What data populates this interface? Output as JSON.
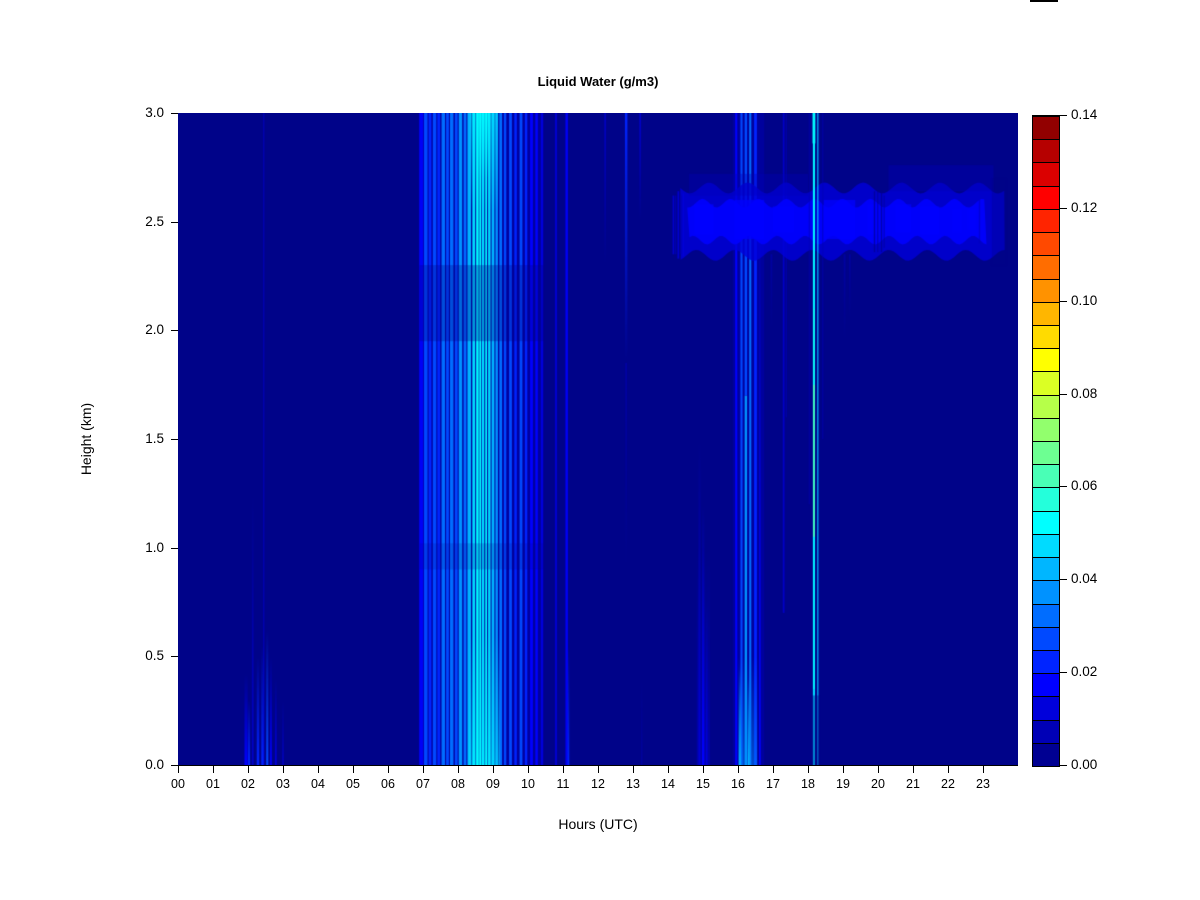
{
  "chart": {
    "title": "Liquid Water (g/m3)",
    "xlabel": "Hours (UTC)",
    "ylabel": "Height (km)"
  },
  "chart_data": {
    "type": "heatmap",
    "title": "Liquid Water (g/m3)",
    "xlabel": "Hours (UTC)",
    "ylabel": "Height (km)",
    "x_range": [
      0,
      24
    ],
    "y_range": [
      0,
      3
    ],
    "value_range": [
      0,
      0.14
    ],
    "bin_size": 0.005,
    "grid": false,
    "plot_bg": "#000389",
    "x_ticks": [
      "00",
      "01",
      "02",
      "03",
      "04",
      "05",
      "06",
      "07",
      "08",
      "09",
      "10",
      "11",
      "12",
      "13",
      "14",
      "15",
      "16",
      "17",
      "18",
      "19",
      "20",
      "21",
      "22",
      "23"
    ],
    "y_ticks": [
      "0.0",
      "0.5",
      "1.0",
      "1.5",
      "2.0",
      "2.5",
      "3.0"
    ],
    "colorbar": {
      "position": "right",
      "tick_labels": [
        "0.00",
        "0.02",
        "0.04",
        "0.06",
        "0.08",
        "0.10",
        "0.12",
        "0.14"
      ],
      "tick_values": [
        0.0,
        0.02,
        0.04,
        0.06,
        0.08,
        0.1,
        0.12,
        0.14
      ],
      "segment_colors": [
        "#000092",
        "#0000B6",
        "#0000DB",
        "#0000FF",
        "#0024FF",
        "#0049FF",
        "#006DFF",
        "#0092FF",
        "#00B6FF",
        "#00DBFF",
        "#00FFFF",
        "#24FFDB",
        "#49FFB6",
        "#6DFF92",
        "#92FF6D",
        "#B6FF49",
        "#DBFF24",
        "#FFFF00",
        "#FFDB00",
        "#FFB600",
        "#FF9200",
        "#FF6D00",
        "#FF4900",
        "#FF2400",
        "#FF0000",
        "#DB0000",
        "#B60000",
        "#920000"
      ]
    },
    "features": [
      {
        "x0": 6.9,
        "x1": 10.45,
        "y0": 0,
        "y1": 3,
        "v": 0.008,
        "a": 0.5
      },
      {
        "x0": 15.85,
        "x1": 16.75,
        "y0": 0,
        "y1": 3,
        "v": 0.008,
        "a": 0.45
      },
      {
        "x0": 14.82,
        "x1": 15.2,
        "y0": 0,
        "y1": 1.0,
        "v": 0.01,
        "a": 0.4,
        "f": "t"
      },
      {
        "x0": 1.9,
        "x1": 1.99,
        "y0": 0,
        "y1": 0.42,
        "v": 0.015,
        "f": "t"
      },
      {
        "x0": 2.0,
        "x1": 2.06,
        "y0": 0,
        "y1": 0.3,
        "v": 0.02,
        "f": "t"
      },
      {
        "x0": 2.11,
        "x1": 2.16,
        "y0": 0,
        "y1": 1.25,
        "v": 0.012,
        "a": 0.8,
        "f": "t"
      },
      {
        "x0": 2.25,
        "x1": 2.32,
        "y0": 0,
        "y1": 0.5,
        "v": 0.02,
        "f": "t"
      },
      {
        "x0": 2.38,
        "x1": 2.46,
        "y0": 0,
        "y1": 0.55,
        "v": 0.022,
        "f": "t"
      },
      {
        "x0": 2.43,
        "x1": 2.47,
        "y0": 0,
        "y1": 3,
        "v": 0.01,
        "a": 0.5
      },
      {
        "x0": 2.52,
        "x1": 2.58,
        "y0": 0,
        "y1": 0.62,
        "v": 0.025,
        "f": "t"
      },
      {
        "x0": 2.63,
        "x1": 2.68,
        "y0": 0,
        "y1": 0.5,
        "v": 0.018,
        "f": "t"
      },
      {
        "x0": 2.77,
        "x1": 2.82,
        "y0": 0,
        "y1": 0.4,
        "v": 0.012,
        "f": "t"
      },
      {
        "x0": 2.98,
        "x1": 3.02,
        "y0": 0,
        "y1": 0.3,
        "v": 0.01,
        "a": 0.8,
        "f": "t"
      },
      {
        "x0": 6.89,
        "x1": 7.01,
        "y0": 0,
        "y1": 3,
        "v": 0.018,
        "a": 0.9
      },
      {
        "x0": 7.03,
        "x1": 7.13,
        "y0": 0,
        "y1": 3,
        "v": 0.025
      },
      {
        "x0": 7.16,
        "x1": 7.24,
        "y0": 0,
        "y1": 3,
        "v": 0.02
      },
      {
        "x0": 7.28,
        "x1": 7.38,
        "y0": 0,
        "y1": 3,
        "v": 0.028
      },
      {
        "x0": 7.41,
        "x1": 7.49,
        "y0": 0,
        "y1": 3,
        "v": 0.022
      },
      {
        "x0": 7.53,
        "x1": 7.63,
        "y0": 0,
        "y1": 3,
        "v": 0.03
      },
      {
        "x0": 7.66,
        "x1": 7.74,
        "y0": 0,
        "y1": 3,
        "v": 0.025
      },
      {
        "x0": 7.77,
        "x1": 7.87,
        "y0": 0,
        "y1": 3,
        "v": 0.032
      },
      {
        "x0": 7.91,
        "x1": 7.99,
        "y0": 0,
        "y1": 3,
        "v": 0.028
      },
      {
        "x0": 8.02,
        "x1": 8.12,
        "y0": 0,
        "y1": 3,
        "v": 0.035
      },
      {
        "x0": 8.16,
        "x1": 8.24,
        "y0": 0,
        "y1": 3,
        "v": 0.03
      },
      {
        "x0": 8.27,
        "x1": 8.37,
        "y0": 0,
        "y1": 3,
        "v": 0.04
      },
      {
        "x0": 8.41,
        "x1": 8.49,
        "y0": 0,
        "y1": 3,
        "v": 0.045
      },
      {
        "x0": 8.52,
        "x1": 8.59,
        "y0": 0,
        "y1": 3,
        "v": 0.05
      },
      {
        "x0": 8.61,
        "x1": 8.66,
        "y0": 0,
        "y1": 3,
        "v": 0.05
      },
      {
        "x0": 8.68,
        "x1": 8.75,
        "y0": 0,
        "y1": 3,
        "v": 0.048
      },
      {
        "x0": 8.78,
        "x1": 8.83,
        "y0": 0,
        "y1": 3,
        "v": 0.05
      },
      {
        "x0": 8.86,
        "x1": 8.93,
        "y0": 0,
        "y1": 3,
        "v": 0.048
      },
      {
        "x0": 8.96,
        "x1": 9.04,
        "y0": 0,
        "y1": 3,
        "v": 0.042
      },
      {
        "x0": 9.07,
        "x1": 9.14,
        "y0": 0,
        "y1": 3,
        "v": 0.038
      },
      {
        "x0": 9.18,
        "x1": 9.26,
        "y0": 0,
        "y1": 3,
        "v": 0.032
      },
      {
        "x0": 9.31,
        "x1": 9.38,
        "y0": 0,
        "y1": 3,
        "v": 0.028
      },
      {
        "x0": 9.46,
        "x1": 9.54,
        "y0": 0,
        "y1": 3,
        "v": 0.025
      },
      {
        "x0": 9.61,
        "x1": 9.68,
        "y0": 0,
        "y1": 3,
        "v": 0.022
      },
      {
        "x0": 9.76,
        "x1": 9.84,
        "y0": 0,
        "y1": 3,
        "v": 0.025
      },
      {
        "x0": 9.91,
        "x1": 9.98,
        "y0": 0,
        "y1": 3,
        "v": 0.02
      },
      {
        "x0": 10.06,
        "x1": 10.14,
        "y0": 0,
        "y1": 3,
        "v": 0.018
      },
      {
        "x0": 10.21,
        "x1": 10.28,
        "y0": 0,
        "y1": 3,
        "v": 0.015
      },
      {
        "x0": 10.37,
        "x1": 10.43,
        "y0": 0,
        "y1": 3,
        "v": 0.012
      },
      {
        "x0": 8.35,
        "x1": 9.15,
        "y0": 2.55,
        "y1": 3,
        "v": 0.05,
        "a": 0.5,
        "f": "b"
      },
      {
        "x0": 8.55,
        "x1": 8.9,
        "y0": 2.7,
        "y1": 3,
        "v": 0.05,
        "a": 0.6,
        "f": "b"
      },
      {
        "x0": 8.3,
        "x1": 9.2,
        "y0": 0,
        "y1": 0.6,
        "v": 0.05,
        "a": 0.45,
        "f": "t"
      },
      {
        "x0": 6.9,
        "x1": 10.45,
        "y0": 1.95,
        "y1": 2.3,
        "v": 0.003,
        "a": 0.3
      },
      {
        "x0": 6.9,
        "x1": 10.45,
        "y0": 0.9,
        "y1": 1.02,
        "v": 0.003,
        "a": 0.18
      },
      {
        "x0": 10.77,
        "x1": 10.83,
        "y0": 0,
        "y1": 3,
        "v": 0.013,
        "a": 0.85
      },
      {
        "x0": 11.07,
        "x1": 11.14,
        "y0": 0,
        "y1": 3,
        "v": 0.016,
        "a": 0.9
      },
      {
        "x0": 11.13,
        "x1": 11.18,
        "y0": 0,
        "y1": 0.55,
        "v": 0.022,
        "f": "t"
      },
      {
        "x0": 12.18,
        "x1": 12.23,
        "y0": 2.3,
        "y1": 3,
        "v": 0.01,
        "a": 0.7,
        "f": "b"
      },
      {
        "x0": 12.77,
        "x1": 12.84,
        "y0": 1.85,
        "y1": 3,
        "v": 0.02,
        "f": "b"
      },
      {
        "x0": 12.78,
        "x1": 12.83,
        "y0": 0.9,
        "y1": 1.85,
        "v": 0.008,
        "a": 0.6,
        "f": "b"
      },
      {
        "x0": 13.18,
        "x1": 13.23,
        "y0": 2.5,
        "y1": 3,
        "v": 0.012,
        "a": 0.8,
        "f": "b"
      },
      {
        "x0": 13.23,
        "x1": 13.27,
        "y0": 0,
        "y1": 0.4,
        "v": 0.008,
        "a": 0.5,
        "f": "t"
      },
      {
        "x0": 14.87,
        "x1": 14.93,
        "y0": 0,
        "y1": 1.5,
        "v": 0.013,
        "a": 0.9,
        "f": "t"
      },
      {
        "x0": 14.97,
        "x1": 15.04,
        "y0": 0,
        "y1": 1.2,
        "v": 0.016,
        "f": "t"
      },
      {
        "x0": 15.08,
        "x1": 15.13,
        "y0": 0,
        "y1": 0.75,
        "v": 0.012,
        "f": "t"
      },
      {
        "x0": 15.92,
        "x1": 15.98,
        "y0": 0,
        "y1": 3,
        "v": 0.018
      },
      {
        "x0": 16.07,
        "x1": 16.13,
        "y0": 0,
        "y1": 3,
        "v": 0.028
      },
      {
        "x0": 16.19,
        "x1": 16.26,
        "y0": 0,
        "y1": 1.7,
        "v": 0.035
      },
      {
        "x0": 16.19,
        "x1": 16.26,
        "y0": 1.7,
        "y1": 3,
        "v": 0.025
      },
      {
        "x0": 16.32,
        "x1": 16.38,
        "y0": 0,
        "y1": 3,
        "v": 0.03
      },
      {
        "x0": 16.46,
        "x1": 16.54,
        "y0": 0,
        "y1": 3,
        "v": 0.024
      },
      {
        "x0": 16.6,
        "x1": 16.65,
        "y0": 0,
        "y1": 2.6,
        "v": 0.018,
        "f": "t"
      },
      {
        "x0": 16.0,
        "x1": 16.55,
        "y0": 0,
        "y1": 0.5,
        "v": 0.035,
        "a": 0.5,
        "f": "t"
      },
      {
        "x0": 16.03,
        "x1": 16.08,
        "y0": 0,
        "y1": 0.45,
        "v": 0.04,
        "f": "t"
      },
      {
        "x0": 16.28,
        "x1": 16.33,
        "y0": 0,
        "y1": 0.4,
        "v": 0.04,
        "f": "t"
      },
      {
        "x0": 17.28,
        "x1": 17.33,
        "y0": 0.7,
        "y1": 3,
        "v": 0.01,
        "a": 0.75
      },
      {
        "x0": 17.36,
        "x1": 17.4,
        "y0": 1.6,
        "y1": 3,
        "v": 0.008,
        "a": 0.6
      },
      {
        "band": true,
        "x0": 14.35,
        "x1": 23.62,
        "yc": 2.5,
        "half": 0.155,
        "v": 0.01,
        "a": 0.8,
        "amp": 0.025,
        "len": 1.1,
        "ph": 0
      },
      {
        "band": true,
        "x0": 14.55,
        "x1": 23.1,
        "yc": 2.5,
        "half": 0.085,
        "v": 0.015,
        "a": 0.9,
        "amp": 0.02,
        "len": 0.8,
        "ph": 1.3
      },
      {
        "x0": 14.75,
        "x1": 15.3,
        "y0": 2.44,
        "y1": 2.58,
        "v": 0.018,
        "a": 0.75
      },
      {
        "x0": 15.9,
        "x1": 16.75,
        "y0": 2.42,
        "y1": 2.6,
        "v": 0.018,
        "a": 0.75
      },
      {
        "x0": 17.0,
        "x1": 17.6,
        "y0": 2.45,
        "y1": 2.57,
        "v": 0.018,
        "a": 0.7
      },
      {
        "x0": 18.45,
        "x1": 19.35,
        "y0": 2.42,
        "y1": 2.6,
        "v": 0.018,
        "a": 0.75
      },
      {
        "x0": 19.7,
        "x1": 20.05,
        "y0": 2.44,
        "y1": 2.58,
        "v": 0.018,
        "a": 0.7
      },
      {
        "x0": 20.5,
        "x1": 20.95,
        "y0": 2.45,
        "y1": 2.58,
        "v": 0.018,
        "a": 0.7
      },
      {
        "x0": 21.2,
        "x1": 21.75,
        "y0": 2.44,
        "y1": 2.57,
        "v": 0.018,
        "a": 0.7
      },
      {
        "x0": 22.1,
        "x1": 22.4,
        "y0": 2.45,
        "y1": 2.56,
        "v": 0.018,
        "a": 0.65
      },
      {
        "x0": 22.55,
        "x1": 22.8,
        "y0": 2.46,
        "y1": 2.56,
        "v": 0.018,
        "a": 0.6
      },
      {
        "x0": 14.13,
        "x1": 14.18,
        "y0": 2.35,
        "y1": 2.62,
        "v": 0.012,
        "a": 0.8
      },
      {
        "x0": 14.2,
        "x1": 14.24,
        "y0": 2.35,
        "y1": 2.62,
        "v": 0.005,
        "a": 0.8
      },
      {
        "x0": 14.27,
        "x1": 14.32,
        "y0": 2.33,
        "y1": 2.64,
        "v": 0.014,
        "a": 0.85
      },
      {
        "x0": 14.35,
        "x1": 14.39,
        "y0": 2.35,
        "y1": 2.62,
        "v": 0.006,
        "a": 0.8
      },
      {
        "x0": 14.42,
        "x1": 14.46,
        "y0": 2.34,
        "y1": 2.63,
        "v": 0.013,
        "a": 0.85
      },
      {
        "x0": 19.88,
        "x1": 19.92,
        "y0": 2.36,
        "y1": 2.64,
        "v": 0.004,
        "a": 0.7
      },
      {
        "x0": 19.98,
        "x1": 20.01,
        "y0": 2.36,
        "y1": 2.64,
        "v": 0.004,
        "a": 0.7
      },
      {
        "x0": 20.08,
        "x1": 20.12,
        "y0": 2.36,
        "y1": 2.64,
        "v": 0.004,
        "a": 0.7
      },
      {
        "x0": 20.16,
        "x1": 20.19,
        "y0": 2.38,
        "y1": 2.62,
        "v": 0.004,
        "a": 0.6
      },
      {
        "x0": 22.88,
        "x1": 22.92,
        "y0": 2.4,
        "y1": 2.6,
        "v": 0.005,
        "a": 0.5
      },
      {
        "x0": 16.93,
        "x1": 16.98,
        "y0": 2.0,
        "y1": 2.35,
        "v": 0.007,
        "a": 0.6,
        "f": "b"
      },
      {
        "x0": 19.02,
        "x1": 19.07,
        "y0": 1.95,
        "y1": 2.35,
        "v": 0.008,
        "a": 0.6,
        "f": "b"
      },
      {
        "x0": 19.17,
        "x1": 19.22,
        "y0": 2.05,
        "y1": 2.35,
        "v": 0.007,
        "a": 0.5,
        "f": "b"
      },
      {
        "x0": 20.3,
        "x1": 23.3,
        "y0": 2.64,
        "y1": 2.76,
        "v": 0.006,
        "a": 0.4
      },
      {
        "x0": 14.6,
        "x1": 18.0,
        "y0": 2.62,
        "y1": 2.72,
        "v": 0.006,
        "a": 0.35
      },
      {
        "x0": 23.25,
        "x1": 23.66,
        "y0": 2.3,
        "y1": 2.7,
        "v": 0.003,
        "a": 0.3
      },
      {
        "x0": 18.14,
        "x1": 18.2,
        "y0": 0,
        "y1": 3,
        "v": 0.045
      },
      {
        "x0": 18.15,
        "x1": 18.19,
        "y0": 0.35,
        "y1": 3,
        "v": 0.05
      },
      {
        "x0": 18.155,
        "x1": 18.185,
        "y0": 1.05,
        "y1": 1.75,
        "v": 0.07,
        "a": 0.8
      },
      {
        "x0": 18.155,
        "x1": 18.185,
        "y0": 1.75,
        "y1": 2.1,
        "v": 0.055,
        "a": 0.55
      },
      {
        "x0": 18.26,
        "x1": 18.3,
        "y0": 0,
        "y1": 3,
        "v": 0.04,
        "a": 0.85
      },
      {
        "x0": 18.21,
        "x1": 18.24,
        "y0": 0,
        "y1": 3,
        "v": 0.003,
        "a": 0.75
      },
      {
        "x0": 18.1,
        "x1": 18.33,
        "y0": 0,
        "y1": 0.32,
        "v": 0.003,
        "a": 0.4
      },
      {
        "x0": 18.13,
        "x1": 18.21,
        "y0": 2.86,
        "y1": 3,
        "v": 0.05,
        "a": 0.9
      },
      {
        "x0": 18.02,
        "x1": 18.06,
        "y0": 1.2,
        "y1": 3,
        "v": 0.008,
        "a": 0.5
      },
      {
        "x0": 18.4,
        "x1": 18.44,
        "y0": 1.5,
        "y1": 3,
        "v": 0.008,
        "a": 0.5
      }
    ]
  }
}
